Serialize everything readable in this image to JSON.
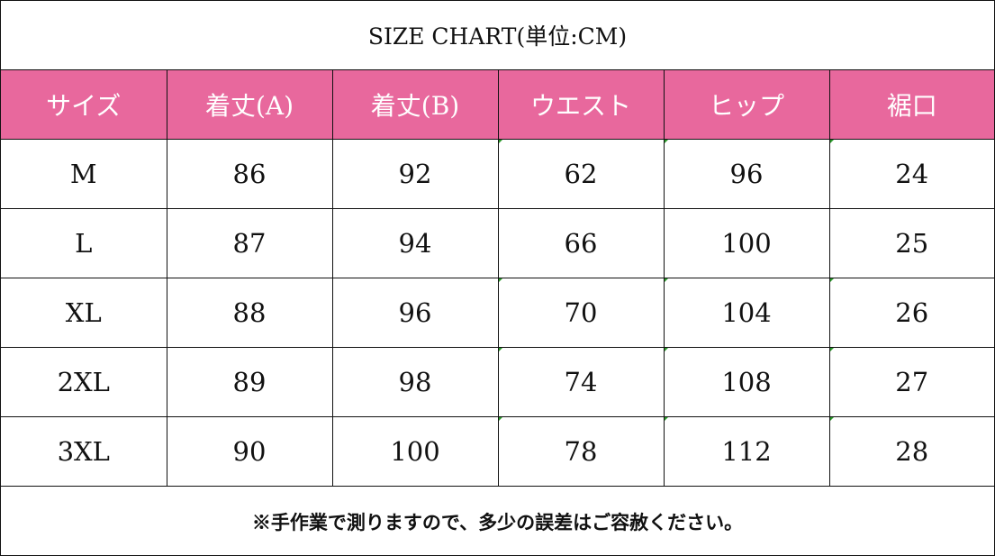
{
  "title": "SIZE CHART(単位:CM)",
  "colors": {
    "header_bg": "#e8689d",
    "header_text": "#ffffff",
    "border": "#111111"
  },
  "headers": [
    "サイズ",
    "着丈(A)",
    "着丈(B)",
    "ウエスト",
    "ヒップ",
    "裾口"
  ],
  "rows": [
    [
      "M",
      "86",
      "92",
      "62",
      "96",
      "24"
    ],
    [
      "L",
      "87",
      "94",
      "66",
      "100",
      "25"
    ],
    [
      "XL",
      "88",
      "96",
      "70",
      "104",
      "26"
    ],
    [
      "2XL",
      "89",
      "98",
      "74",
      "108",
      "27"
    ],
    [
      "3XL",
      "90",
      "100",
      "78",
      "112",
      "28"
    ]
  ],
  "note": "※手作業で測りますので、多少の誤差はご容赦ください。"
}
